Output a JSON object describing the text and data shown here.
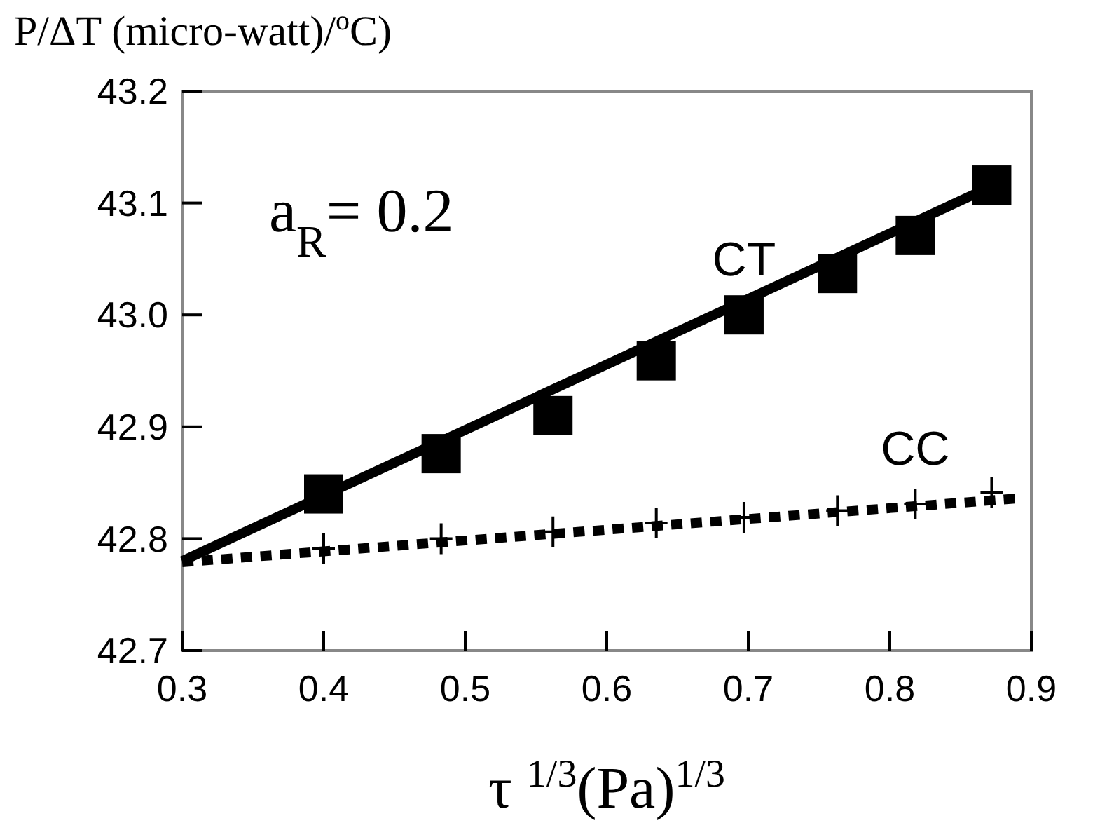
{
  "chart_data": {
    "type": "scatter",
    "xlabel": "τ $^{1/3}$(Pa)$^{1/3}$",
    "ylabel": "P/ΔT (micro-watt)/$^{o}$C)",
    "xlim": [
      0.3,
      0.9
    ],
    "xticks": [
      0.3,
      0.4,
      0.5,
      0.6,
      0.7,
      0.8,
      0.9
    ],
    "ylim": [
      42.7,
      43.2
    ],
    "yticks": [
      42.7,
      42.8,
      42.9,
      {
        "value": 43,
        "label": "43.0"
      },
      43.1,
      43.2
    ],
    "grid": false,
    "legend": false,
    "annotations": [
      "a$_{R}$= 0.2"
    ],
    "series": [
      {
        "name": "CT",
        "marker": "square",
        "color": "#000000",
        "x": [
          0.4,
          0.483,
          0.562,
          0.635,
          0.697,
          0.763,
          0.818,
          0.872
        ],
        "values": [
          42.84,
          42.876,
          42.91,
          42.959,
          43.0,
          43.037,
          43.071,
          43.116
        ]
      },
      {
        "type": "line",
        "marker": "none",
        "line_style": "solid",
        "color": "#000000",
        "x": [
          0.3,
          0.872
        ],
        "values": [
          42.78,
          43.115
        ]
      },
      {
        "name": "CC",
        "marker": "cross",
        "color": "#000000",
        "x": [
          0.4,
          0.483,
          0.562,
          0.635,
          0.697,
          0.763,
          0.818,
          0.872
        ],
        "values": [
          42.791,
          42.8,
          42.806,
          42.814,
          42.819,
          42.825,
          42.831,
          42.841
        ]
      },
      {
        "type": "line",
        "marker": "none",
        "line_style": "dotted",
        "color": "#000000",
        "x": [
          0.3,
          0.89
        ],
        "values": [
          42.779,
          42.836
        ]
      }
    ]
  }
}
